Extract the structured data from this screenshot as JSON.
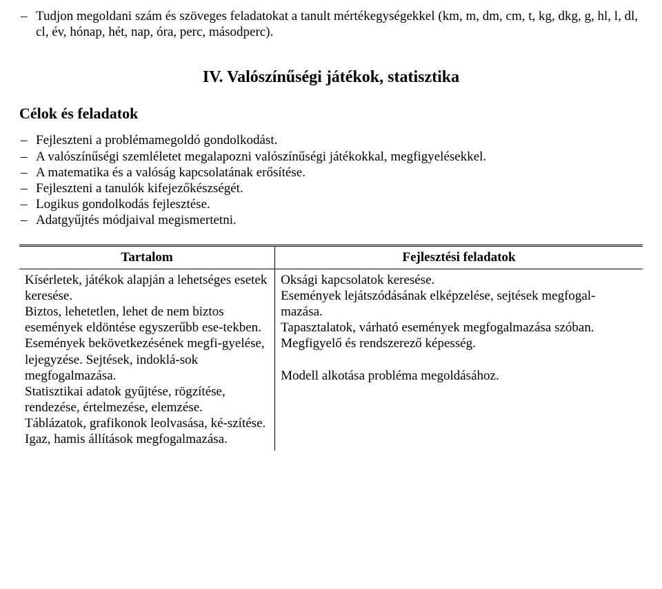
{
  "top_item": "Tudjon megoldani szám és szöveges feladatokat a tanult mértékegységekkel (km, m, dm, cm, t, kg, dkg, g, hl, l, dl, cl, év, hónap, hét, nap, óra, perc, másodperc).",
  "section_title": "IV. Valószínűségi játékok, statisztika",
  "sub_heading": "Célok és feladatok",
  "goals": [
    "Fejleszteni a problémamegoldó gondolkodást.",
    "A valószínűségi szemléletet megalapozni valószínűségi játékokkal, megfigyelésekkel.",
    "A matematika és a valóság kapcsolatának erősítése.",
    "Fejleszteni a tanulók kifejezőkészségét.",
    "Logikus gondolkodás fejlesztése.",
    "Adatgyűjtés módjaival megismertetni."
  ],
  "table": {
    "header_left": "Tartalom",
    "header_right": "Fejlesztési feladatok",
    "left_text": "Kísérletek, játékok alapján a lehetséges esetek keresése.\nBiztos, lehetetlen, lehet de nem biztos események eldöntése egyszerűbb ese-tekben.\nEsemények bekövetkezésének megfi-gyelése, lejegyzése. Sejtések, indoklá-sok megfogalmazása.\nStatisztikai adatok gyűjtése, rögzítése, rendezése, értelmezése, elemzése.\nTáblázatok, grafikonok leolvasása, ké-szítése.\nIgaz, hamis állítások megfogalmazása.",
    "right_text": "Oksági kapcsolatok keresése.\nEsemények lejátszódásának elképzelése, sejtések megfogal-mazása.\nTapasztalatok, várható események megfogalmazása szóban.\nMegfigyelő és rendszerező képesség.\n\nModell alkotása probléma megoldásához."
  }
}
